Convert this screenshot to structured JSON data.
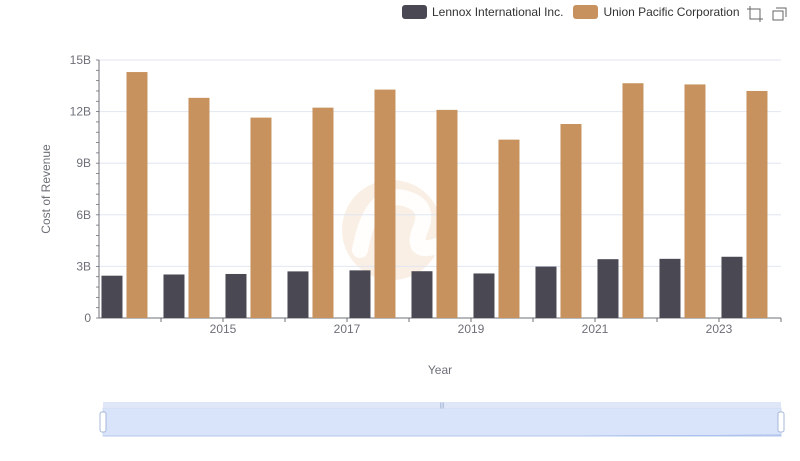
{
  "legend": {
    "items": [
      {
        "name": "Lennox International Inc.",
        "color": "#4a4953"
      },
      {
        "name": "Union Pacific Corporation",
        "color": "#c8925e"
      }
    ]
  },
  "toolbox": {
    "icons": [
      "zoom-select-icon",
      "zoom-reset-icon"
    ]
  },
  "chart_data": {
    "type": "bar",
    "x": [
      2014,
      2015,
      2016,
      2017,
      2018,
      2019,
      2020,
      2021,
      2022,
      2023,
      2024
    ],
    "x_tick_labels": [
      "2015",
      "2017",
      "2019",
      "2021",
      "2023"
    ],
    "xlabel": "Year",
    "ylabel": "Cost of Revenue",
    "ylim": [
      0,
      15000000000
    ],
    "y_tick_labels": [
      "0",
      "3B",
      "6B",
      "9B",
      "12B",
      "15B"
    ],
    "series": [
      {
        "name": "Lennox International Inc.",
        "color": "#4a4953",
        "values": [
          2460000000,
          2530000000,
          2560000000,
          2710000000,
          2770000000,
          2720000000,
          2590000000,
          2990000000,
          3420000000,
          3440000000,
          3560000000
        ]
      },
      {
        "name": "Union Pacific Corporation",
        "color": "#c8925e",
        "values": [
          14300000000,
          12800000000,
          11650000000,
          12230000000,
          13280000000,
          12100000000,
          10370000000,
          11280000000,
          13650000000,
          13580000000,
          13200000000
        ]
      }
    ],
    "legend_position": "top-right",
    "grid": true,
    "data_zoom": {
      "start": 0,
      "end": 100
    }
  }
}
